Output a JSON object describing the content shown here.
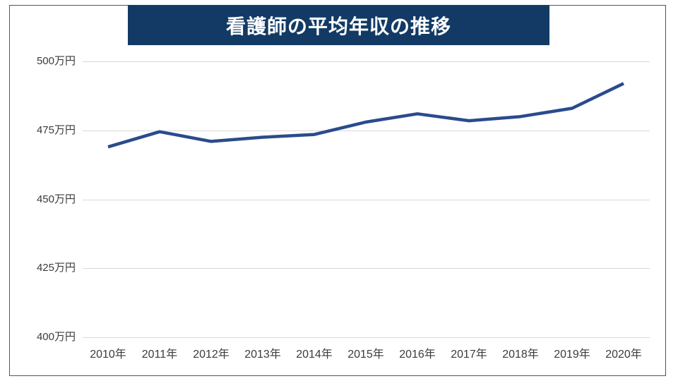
{
  "header": {
    "title": "看護師の平均年収の推移",
    "banner_color": "#123A64",
    "title_color": "#FFFFFF"
  },
  "chart_data": {
    "type": "line",
    "title": "看護師の平均年収の推移",
    "categories": [
      "2010年",
      "2011年",
      "2012年",
      "2013年",
      "2014年",
      "2015年",
      "2016年",
      "2017年",
      "2018年",
      "2019年",
      "2020年"
    ],
    "series": [
      {
        "name": "平均年収",
        "values": [
          469,
          474.5,
          471,
          472.5,
          473.5,
          478,
          481,
          478.5,
          480,
          483,
          492
        ]
      }
    ],
    "unit": "万円",
    "xlabel": "",
    "ylabel": "",
    "ylim": [
      400,
      500
    ],
    "ytick_interval": 25,
    "ytick_labels": [
      "500万円",
      "475万円",
      "450万円",
      "425万円",
      "400万円"
    ],
    "grid": "horizontal",
    "legend": "none",
    "line_color": "#2A4B8D",
    "gridline_color": "#D9D9D9",
    "frame_border_color": "#555555"
  }
}
